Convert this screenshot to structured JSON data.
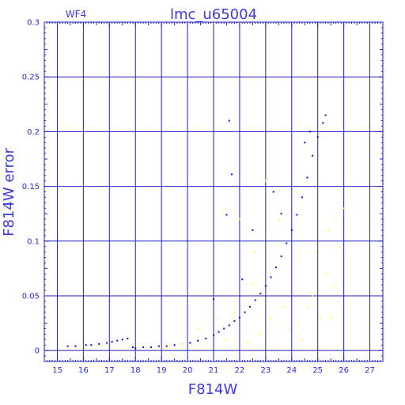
{
  "chart_data": {
    "type": "scatter",
    "title": "lmc_u65004",
    "chip_label": "WF4",
    "xlabel": "F814W",
    "ylabel": "F814W error",
    "xlim": [
      14.5,
      27.5
    ],
    "ylim": [
      -0.01,
      0.3
    ],
    "x_ticks": [
      15,
      16,
      17,
      18,
      19,
      20,
      21,
      22,
      23,
      24,
      25,
      26,
      27
    ],
    "y_ticks": [
      0,
      0.05,
      0.1,
      0.15,
      0.2,
      0.25,
      0.3
    ],
    "y_tick_labels": [
      "0",
      "0.05",
      "0.1",
      "0.15",
      "0.2",
      "0.25",
      "0.3"
    ],
    "grid": true,
    "colors": {
      "axis": "#1f1fbf",
      "grid": "#1f1fbf",
      "main": "#0a0ad8",
      "outlier": "#ffff3c",
      "text": "#3a3ae0"
    },
    "series": [
      {
        "color": "#0a0ad8",
        "points": [
          [
            15.4,
            0.004
          ],
          [
            15.7,
            0.004
          ],
          [
            16.1,
            0.005
          ],
          [
            16.3,
            0.005
          ],
          [
            16.6,
            0.006
          ],
          [
            16.9,
            0.007
          ],
          [
            17.1,
            0.008
          ],
          [
            17.3,
            0.009
          ],
          [
            17.5,
            0.01
          ],
          [
            17.7,
            0.011
          ],
          [
            17.9,
            0.003
          ],
          [
            18.0,
            0.002
          ],
          [
            18.3,
            0.003
          ],
          [
            18.6,
            0.003
          ],
          [
            18.9,
            0.004
          ],
          [
            19.2,
            0.004
          ],
          [
            19.5,
            0.005
          ],
          [
            19.8,
            0.006
          ],
          [
            20.1,
            0.007
          ],
          [
            20.4,
            0.009
          ],
          [
            20.7,
            0.011
          ],
          [
            21.0,
            0.014
          ],
          [
            21.2,
            0.017
          ],
          [
            21.4,
            0.02
          ],
          [
            21.6,
            0.023
          ],
          [
            21.8,
            0.027
          ],
          [
            22.0,
            0.03
          ],
          [
            22.2,
            0.035
          ],
          [
            22.4,
            0.04
          ],
          [
            22.6,
            0.046
          ],
          [
            22.8,
            0.052
          ],
          [
            23.0,
            0.059
          ],
          [
            23.2,
            0.067
          ],
          [
            23.4,
            0.076
          ],
          [
            23.6,
            0.086
          ],
          [
            23.8,
            0.098
          ],
          [
            24.0,
            0.11
          ],
          [
            24.2,
            0.124
          ],
          [
            24.4,
            0.14
          ],
          [
            24.6,
            0.158
          ],
          [
            24.8,
            0.178
          ],
          [
            25.0,
            0.195
          ],
          [
            25.2,
            0.208
          ],
          [
            25.3,
            0.215
          ],
          [
            21.0,
            0.047
          ],
          [
            21.6,
            0.21
          ],
          [
            21.7,
            0.161
          ],
          [
            21.5,
            0.124
          ],
          [
            22.1,
            0.065
          ],
          [
            22.5,
            0.11
          ],
          [
            23.3,
            0.145
          ],
          [
            23.6,
            0.125
          ],
          [
            24.7,
            0.2
          ],
          [
            24.5,
            0.19
          ]
        ]
      },
      {
        "color": "#ffff3c",
        "points": [
          [
            19.3,
            0.004
          ],
          [
            19.8,
            0.006
          ],
          [
            20.4,
            0.02
          ],
          [
            21.1,
            0.03
          ],
          [
            21.5,
            0.01
          ],
          [
            21.8,
            0.035
          ],
          [
            22.3,
            0.008
          ],
          [
            22.5,
            0.06
          ],
          [
            22.6,
            0.09
          ],
          [
            22.8,
            0.015
          ],
          [
            23.2,
            0.03
          ],
          [
            23.5,
            0.12
          ],
          [
            23.7,
            0.04
          ],
          [
            23.9,
            0.02
          ],
          [
            24.2,
            0.025
          ],
          [
            24.4,
            0.01
          ],
          [
            24.6,
            0.04
          ],
          [
            24.8,
            0.05
          ],
          [
            24.9,
            0.09
          ],
          [
            25.1,
            0.03
          ],
          [
            25.3,
            0.07
          ],
          [
            25.4,
            0.11
          ],
          [
            25.5,
            0.03
          ],
          [
            25.6,
            0.06
          ],
          [
            25.7,
            0.12
          ],
          [
            25.9,
            0.095
          ],
          [
            22.0,
            0.12
          ],
          [
            23.0,
            0.155
          ],
          [
            24.1,
            0.145
          ],
          [
            26.0,
            0.13
          ]
        ]
      }
    ]
  }
}
